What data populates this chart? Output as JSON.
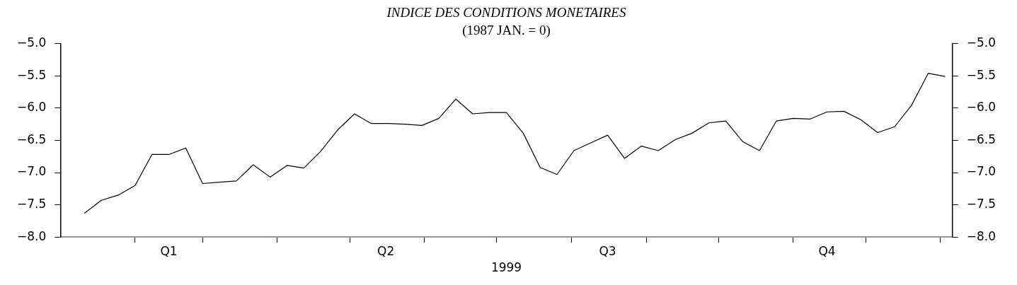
{
  "chart_data": {
    "type": "line",
    "title": "INDICE DES CONDITIONS MONETAIRES",
    "subtitle": "(1987 JAN. = 0)",
    "xlabel": "1999",
    "x": [
      "1999-01-11",
      "1999-01-18",
      "1999-01-25",
      "1999-02-01",
      "1999-02-08",
      "1999-02-15",
      "1999-02-22",
      "1999-03-01",
      "1999-03-08",
      "1999-03-15",
      "1999-03-22",
      "1999-03-29",
      "1999-04-05",
      "1999-04-12",
      "1999-04-19",
      "1999-04-26",
      "1999-05-03",
      "1999-05-10",
      "1999-05-17",
      "1999-05-24",
      "1999-05-31",
      "1999-06-07",
      "1999-06-14",
      "1999-06-21",
      "1999-06-28",
      "1999-07-05",
      "1999-07-12",
      "1999-07-19",
      "1999-07-26",
      "1999-08-02",
      "1999-08-09",
      "1999-08-16",
      "1999-08-23",
      "1999-08-30",
      "1999-09-06",
      "1999-09-13",
      "1999-09-20",
      "1999-09-27",
      "1999-10-04",
      "1999-10-11",
      "1999-10-18",
      "1999-10-25",
      "1999-11-01",
      "1999-11-08",
      "1999-11-15",
      "1999-11-22",
      "1999-11-29",
      "1999-12-06",
      "1999-12-13",
      "1999-12-20",
      "1999-12-27",
      "2000-01-03"
    ],
    "series": [
      {
        "color": "#000000",
        "values": [
          -7.63,
          -7.43,
          -7.35,
          -7.2,
          -6.72,
          -6.72,
          -6.62,
          -7.17,
          -7.15,
          -7.13,
          -6.88,
          -7.07,
          -6.89,
          -6.93,
          -6.67,
          -6.34,
          -6.09,
          -6.24,
          -6.24,
          -6.25,
          -6.27,
          -6.16,
          -5.86,
          -6.09,
          -6.07,
          -6.07,
          -6.39,
          -6.92,
          -7.03,
          -6.66,
          -6.54,
          -6.42,
          -6.78,
          -6.59,
          -6.66,
          -6.49,
          -6.39,
          -6.23,
          -6.2,
          -6.52,
          -6.66,
          -6.2,
          -6.16,
          -6.17,
          -6.06,
          -6.05,
          -6.18,
          -6.38,
          -6.29,
          -5.96,
          -5.46,
          -5.51
        ]
      }
    ],
    "xlim": [
      "1999-01-01",
      "2000-01-06"
    ],
    "xticks": [
      {
        "value": "1999-02-01",
        "label": null
      },
      {
        "value": "1999-02-15",
        "label": "Q1"
      },
      {
        "value": "1999-03-01",
        "label": null
      },
      {
        "value": "1999-04-01",
        "label": null
      },
      {
        "value": "1999-05-01",
        "label": null
      },
      {
        "value": "1999-05-16",
        "label": "Q2"
      },
      {
        "value": "1999-06-01",
        "label": null
      },
      {
        "value": "1999-07-01",
        "label": null
      },
      {
        "value": "1999-08-01",
        "label": null
      },
      {
        "value": "1999-08-16",
        "label": "Q3"
      },
      {
        "value": "1999-09-01",
        "label": null
      },
      {
        "value": "1999-10-01",
        "label": null
      },
      {
        "value": "1999-11-01",
        "label": null
      },
      {
        "value": "1999-11-15",
        "label": "Q4"
      },
      {
        "value": "1999-12-01",
        "label": null
      },
      {
        "value": "2000-01-01",
        "label": null
      }
    ],
    "ylim": [
      -8,
      -5
    ],
    "yticks": [
      {
        "value": -8,
        "label": "−8.0"
      },
      {
        "value": -7.5,
        "label": "−7.5"
      },
      {
        "value": -7,
        "label": "−7.0"
      },
      {
        "value": -6.5,
        "label": "−6.5"
      },
      {
        "value": -6,
        "label": "−6.0"
      },
      {
        "value": -5.5,
        "label": "−5.5"
      },
      {
        "value": -5,
        "label": "−5.0"
      }
    ],
    "y2lim": [
      -8,
      -5
    ],
    "y2ticks": [
      {
        "value": -8,
        "label": "−8.0"
      },
      {
        "value": -7.5,
        "label": "−7.5"
      },
      {
        "value": -7,
        "label": "−7.0"
      },
      {
        "value": -6.5,
        "label": "−6.5"
      },
      {
        "value": -6,
        "label": "−6.0"
      },
      {
        "value": -5.5,
        "label": "−5.5"
      },
      {
        "value": -5,
        "label": "−5.0"
      }
    ],
    "grid": false,
    "legend": false,
    "marker": "none",
    "line_style": "solid"
  }
}
